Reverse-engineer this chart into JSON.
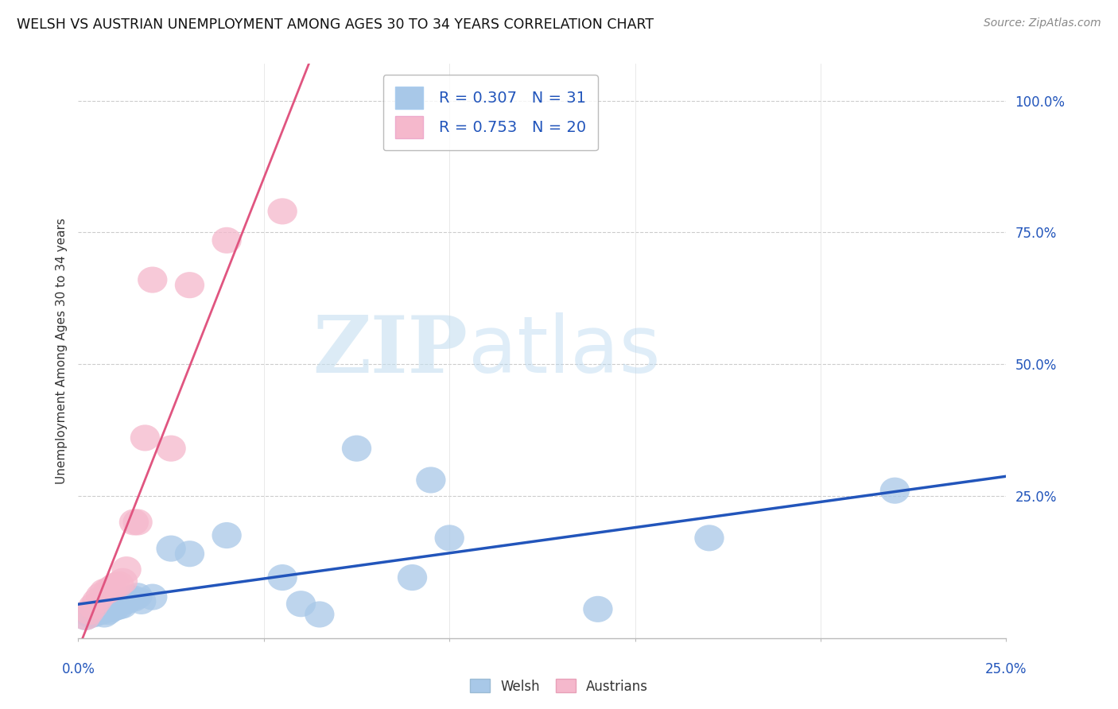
{
  "title": "WELSH VS AUSTRIAN UNEMPLOYMENT AMONG AGES 30 TO 34 YEARS CORRELATION CHART",
  "source": "Source: ZipAtlas.com",
  "ylabel": "Unemployment Among Ages 30 to 34 years",
  "yticks_labels": [
    "100.0%",
    "75.0%",
    "50.0%",
    "25.0%"
  ],
  "ytick_vals": [
    1.0,
    0.75,
    0.5,
    0.25
  ],
  "xrange": [
    0.0,
    0.25
  ],
  "yrange": [
    -0.02,
    1.07
  ],
  "welsh_color": "#a8c8e8",
  "austrian_color": "#f5b8cc",
  "welsh_line_color": "#2255bb",
  "austrian_line_color": "#e05580",
  "watermark_zip": "ZIP",
  "watermark_atlas": "atlas",
  "welsh_R": 0.307,
  "welsh_N": 31,
  "austrian_R": 0.753,
  "austrian_N": 20,
  "welsh_x": [
    0.002,
    0.003,
    0.004,
    0.005,
    0.006,
    0.007,
    0.007,
    0.008,
    0.009,
    0.01,
    0.011,
    0.012,
    0.013,
    0.014,
    0.015,
    0.016,
    0.017,
    0.02,
    0.025,
    0.03,
    0.04,
    0.055,
    0.06,
    0.065,
    0.075,
    0.09,
    0.095,
    0.1,
    0.14,
    0.17,
    0.22
  ],
  "welsh_y": [
    0.02,
    0.025,
    0.025,
    0.028,
    0.03,
    0.025,
    0.032,
    0.03,
    0.035,
    0.038,
    0.04,
    0.042,
    0.05,
    0.055,
    0.055,
    0.06,
    0.05,
    0.058,
    0.15,
    0.14,
    0.175,
    0.095,
    0.045,
    0.025,
    0.34,
    0.095,
    0.28,
    0.17,
    0.035,
    0.17,
    0.26
  ],
  "austrian_x": [
    0.002,
    0.003,
    0.004,
    0.005,
    0.006,
    0.007,
    0.008,
    0.009,
    0.01,
    0.011,
    0.012,
    0.013,
    0.015,
    0.016,
    0.018,
    0.02,
    0.025,
    0.03,
    0.04,
    0.055
  ],
  "austrian_y": [
    0.02,
    0.03,
    0.04,
    0.05,
    0.06,
    0.068,
    0.07,
    0.075,
    0.08,
    0.082,
    0.088,
    0.11,
    0.2,
    0.2,
    0.36,
    0.66,
    0.34,
    0.65,
    0.735,
    0.79
  ],
  "background_color": "#ffffff",
  "grid_color": "#cccccc",
  "legend_box_color": "#ffffff",
  "legend_edge_color": "#aaaaaa"
}
